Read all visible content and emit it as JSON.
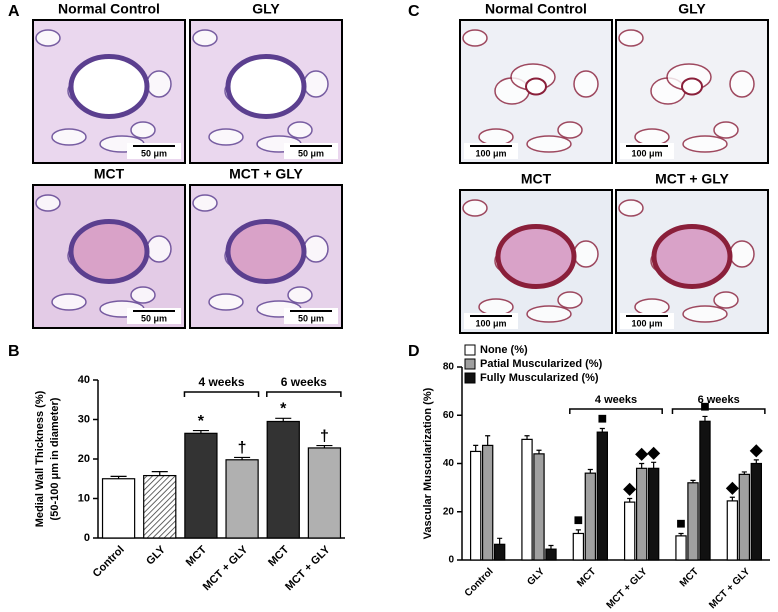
{
  "panels": [
    {
      "label": "A",
      "images": [
        {
          "title": "Normal Control",
          "scale_bar": "50 μm"
        },
        {
          "title": "GLY",
          "scale_bar": "50 μm"
        },
        {
          "title": "MCT",
          "scale_bar": "50 μm"
        },
        {
          "title": "MCT + GLY",
          "scale_bar": "50 μm"
        }
      ]
    },
    {
      "label": "C",
      "images": [
        {
          "title": "Normal Control",
          "scale_bar": "100 μm"
        },
        {
          "title": "GLY",
          "scale_bar": "100 μm"
        },
        {
          "title": "MCT",
          "scale_bar": "100 μm"
        },
        {
          "title": "MCT + GLY",
          "scale_bar": "100 μm"
        }
      ]
    }
  ],
  "chart_data": [
    {
      "type": "bar",
      "panel_label": "B",
      "ylabel": [
        "Medial Wall Thickness (%)",
        "(50-100 μm in diameter)"
      ],
      "categories": [
        "Control",
        "GLY",
        "MCT",
        "MCT + GLY",
        "MCT",
        "MCT + GLY"
      ],
      "values": [
        15,
        15.8,
        26.5,
        19.8,
        29.5,
        22.8
      ],
      "errors": [
        0.6,
        1.0,
        0.7,
        0.6,
        0.8,
        0.6
      ],
      "colors": [
        "#ffffff",
        "#ffffff",
        "#333333",
        "#b0b0b0",
        "#333333",
        "#b0b0b0"
      ],
      "hatch": [
        false,
        true,
        false,
        false,
        false,
        false
      ],
      "markers": [
        null,
        null,
        "*",
        "†",
        "*",
        "†"
      ],
      "groups": [
        {
          "label": "4 weeks",
          "span": [
            2,
            3
          ]
        },
        {
          "label": "6 weeks",
          "span": [
            4,
            5
          ]
        }
      ],
      "ylim": [
        0,
        40
      ],
      "yticks": [
        0,
        10,
        20,
        30,
        40
      ]
    },
    {
      "type": "bar",
      "panel_label": "D",
      "ylabel": [
        "Vascular Muscularization (%)"
      ],
      "categories": [
        "Control",
        "GLY",
        "MCT",
        "MCT + GLY",
        "MCT",
        "MCT + GLY"
      ],
      "series": [
        {
          "name": "None (%)",
          "color": "#ffffff",
          "values": [
            45,
            50,
            11,
            24,
            10,
            24.5
          ],
          "errors": [
            2.5,
            1.5,
            1.5,
            1.5,
            1,
            1.5
          ],
          "markers": [
            null,
            null,
            "■",
            "◆",
            "■",
            "◆"
          ]
        },
        {
          "name": "Patial Muscularized (%)",
          "color": "#a0a0a0",
          "values": [
            47.5,
            44,
            36,
            38,
            32,
            35.5
          ],
          "errors": [
            4,
            1.5,
            1.5,
            2,
            1,
            1
          ],
          "markers": [
            null,
            null,
            null,
            "◆",
            null,
            null
          ]
        },
        {
          "name": "Fully Muscularized (%)",
          "color": "#111111",
          "values": [
            6.5,
            4.5,
            53,
            38,
            57.5,
            40
          ],
          "errors": [
            2.5,
            1.5,
            1.5,
            2.5,
            2,
            1.5
          ],
          "markers": [
            null,
            null,
            "■",
            "◆",
            "■",
            "◆"
          ]
        }
      ],
      "groups": [
        {
          "label": "4 weeks",
          "span": [
            2,
            3
          ]
        },
        {
          "label": "6 weeks",
          "span": [
            4,
            5
          ]
        }
      ],
      "ylim": [
        0,
        80
      ],
      "yticks": [
        0,
        20,
        40,
        60,
        80
      ]
    }
  ]
}
